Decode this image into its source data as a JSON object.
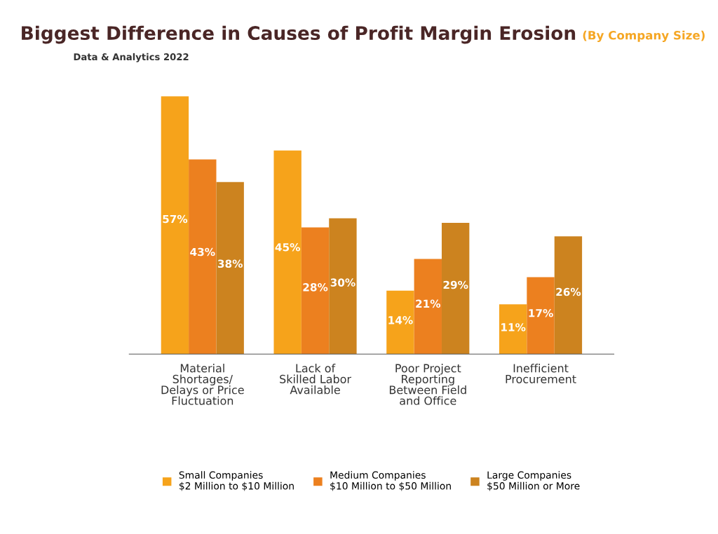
{
  "chart_data": {
    "type": "bar",
    "title": "Biggest Difference in Causes of Profit Margin Erosion",
    "subtitle": "Data & Analytics 2022",
    "annotations": [
      "(By Company Size)"
    ],
    "categories": [
      "Material\nShortages/\nDelays or Price\nFluctuation",
      "Lack of\nSkilled Labor\nAvailable",
      "Poor Project\nReporting\nBetween Field\nand Office",
      "Inefficient\nProcurement"
    ],
    "series": [
      {
        "name": "Small Companies\n$2 Million to $10 Million",
        "color": "#f6a31b",
        "values": [
          57,
          45,
          14,
          11
        ],
        "value_labels": [
          "57%",
          "45%",
          "14%",
          "11%"
        ]
      },
      {
        "name": "Medium Companies\n$10 Million to $50 Million",
        "color": "#ec801f",
        "values": [
          43,
          28,
          21,
          17
        ],
        "value_labels": [
          "43%",
          "28%",
          "21%",
          "17%"
        ]
      },
      {
        "name": "Large Companies\n$50 Million or More",
        "color": "#cc831f",
        "values": [
          38,
          30,
          29,
          26
        ],
        "value_labels": [
          "38%",
          "30%",
          "29%",
          "26%"
        ]
      }
    ],
    "grid": false,
    "legend": "bottom"
  }
}
